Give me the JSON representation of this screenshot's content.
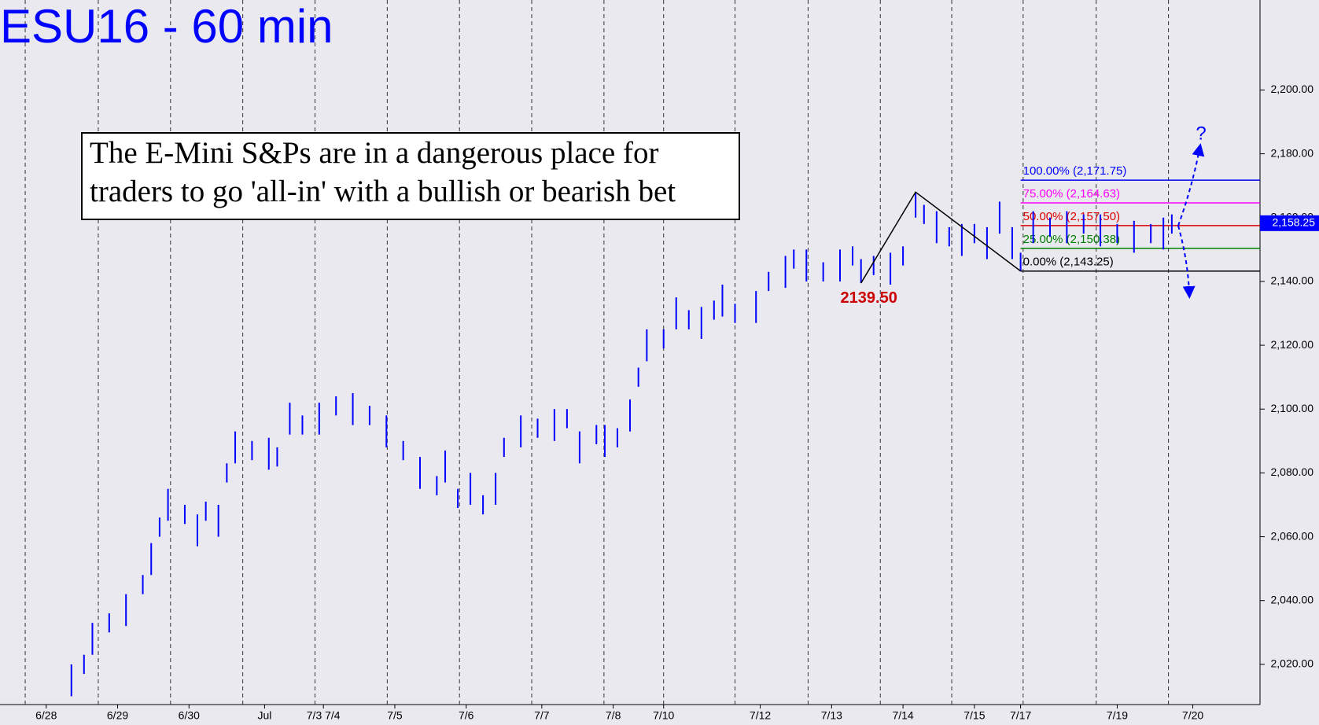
{
  "chart_data": {
    "type": "ohlc",
    "title": "ESU16 - 60 min",
    "annotation_box": [
      "The E-Mini S&Ps are in a dangerous place for",
      "traders to go 'all-in' with a bullish or bearish bet"
    ],
    "color": "#0000ff",
    "xlim": [
      0,
      300
    ],
    "ylim": [
      2007.4,
      2228.2
    ],
    "xticks": [
      {
        "value": 11,
        "label": "6/28"
      },
      {
        "value": 28,
        "label": "6/29"
      },
      {
        "value": 45,
        "label": "6/30"
      },
      {
        "value": 63,
        "label": "Jul"
      },
      {
        "value": 77,
        "label": "7/3 7/4"
      },
      {
        "value": 94,
        "label": "7/5"
      },
      {
        "value": 111,
        "label": "7/6"
      },
      {
        "value": 129,
        "label": "7/7"
      },
      {
        "value": 146,
        "label": "7/8"
      },
      {
        "value": 158,
        "label": "7/10"
      },
      {
        "value": 181,
        "label": "7/12"
      },
      {
        "value": 198,
        "label": "7/13"
      },
      {
        "value": 215,
        "label": "7/14"
      },
      {
        "value": 232,
        "label": "7/15"
      },
      {
        "value": 243,
        "label": "7/17"
      },
      {
        "value": 266,
        "label": "7/19"
      },
      {
        "value": 284,
        "label": "7/20"
      }
    ],
    "session_breaks": [
      6,
      23.4,
      40.6,
      57.8,
      75,
      92.2,
      109.4,
      126.6,
      143.8,
      158,
      175,
      192.4,
      209.6,
      226.6,
      243.6,
      261,
      278.2
    ],
    "yticks": [
      {
        "value": 2020,
        "label": "2,020.00"
      },
      {
        "value": 2040,
        "label": "2,040.00"
      },
      {
        "value": 2060,
        "label": "2,060.00"
      },
      {
        "value": 2080,
        "label": "2,080.00"
      },
      {
        "value": 2100,
        "label": "2,100.00"
      },
      {
        "value": 2120,
        "label": "2,120.00"
      },
      {
        "value": 2140,
        "label": "2,140.00"
      },
      {
        "value": 2160,
        "label": "2,160.00"
      },
      {
        "value": 2180,
        "label": "2,180.00"
      },
      {
        "value": 2200,
        "label": "2,200.00"
      }
    ],
    "x": [
      17,
      20,
      22,
      26,
      30,
      34,
      36,
      38,
      40,
      44,
      47,
      49,
      52,
      54,
      56,
      60,
      64,
      66,
      69,
      72,
      76,
      80,
      84,
      88,
      92,
      96,
      100,
      104,
      106,
      109,
      112,
      115,
      118,
      120,
      124,
      128,
      132,
      135,
      138,
      142,
      144,
      147,
      150,
      152,
      154,
      158,
      161,
      164,
      167,
      170,
      172,
      175,
      180,
      183,
      187,
      189,
      192,
      196,
      200,
      203,
      205,
      208,
      212,
      215,
      218,
      220,
      223,
      226,
      229,
      232,
      235,
      238,
      241,
      243,
      246,
      250,
      254,
      258,
      262,
      266,
      270,
      274,
      277,
      279
    ],
    "high": [
      2020,
      2023,
      2033,
      2036,
      2042,
      2048,
      2058,
      2066,
      2075,
      2070,
      2067,
      2071,
      2070,
      2083,
      2093,
      2090,
      2091,
      2088,
      2102,
      2098,
      2102,
      2104,
      2105,
      2101,
      2098,
      2090,
      2085,
      2079,
      2087,
      2075,
      2080,
      2073,
      2080,
      2091,
      2098,
      2097,
      2100,
      2100,
      2093,
      2095,
      2095,
      2094,
      2103,
      2113,
      2125,
      2125,
      2135,
      2131,
      2132,
      2134,
      2139,
      2133,
      2137,
      2143,
      2148,
      2150,
      2150,
      2146,
      2150,
      2151,
      2147,
      2148,
      2149,
      2151,
      2168,
      2164,
      2162,
      2157,
      2158,
      2158,
      2157,
      2165,
      2157,
      2149,
      2162,
      2160,
      2162,
      2161,
      2161,
      2158,
      2159,
      2158,
      2160,
      2161
    ],
    "low": [
      2010,
      2017,
      2023,
      2030,
      2032,
      2042,
      2048,
      2060,
      2065,
      2064,
      2057,
      2065,
      2060,
      2077,
      2083,
      2084,
      2081,
      2082,
      2092,
      2092,
      2092,
      2098,
      2095,
      2095,
      2088,
      2084,
      2075,
      2073,
      2077,
      2069,
      2070,
      2067,
      2070,
      2085,
      2088,
      2091,
      2090,
      2094,
      2083,
      2089,
      2085,
      2088,
      2093,
      2107,
      2115,
      2119,
      2125,
      2125,
      2122,
      2128,
      2129,
      2127,
      2127,
      2137,
      2138,
      2144,
      2140,
      2140,
      2140,
      2145,
      2139.5,
      2142,
      2139,
      2145,
      2160,
      2158,
      2152,
      2151,
      2148,
      2152,
      2147,
      2155,
      2147,
      2143.25,
      2152,
      2154,
      2152,
      2155,
      2151,
      2152,
      2149,
      2152,
      2150,
      2155
    ],
    "low_label": {
      "x": 205,
      "value": 2139.5,
      "label": "2139.50"
    },
    "pattern": {
      "x": [
        205,
        218,
        243
      ],
      "y": [
        2139.5,
        2168,
        2143.25
      ]
    },
    "fib_xlim": [
      243,
      300
    ],
    "fib": [
      {
        "value": 2171.75,
        "label": "100.00% (2,171.75)",
        "color": "#0000ff"
      },
      {
        "value": 2164.63,
        "label": "75.00% (2,164.63)",
        "color": "#ff00ff"
      },
      {
        "value": 2157.5,
        "label": "50.00% (2,157.50)",
        "color": "#dd0000"
      },
      {
        "value": 2150.38,
        "label": "25.00% (2,150.38)",
        "color": "#008000"
      },
      {
        "value": 2143.25,
        "label": "0.00% (2,143.25)",
        "color": "#000000"
      }
    ],
    "last_price": {
      "value": 2158.25,
      "label": "2,158.25"
    },
    "question": "?"
  }
}
